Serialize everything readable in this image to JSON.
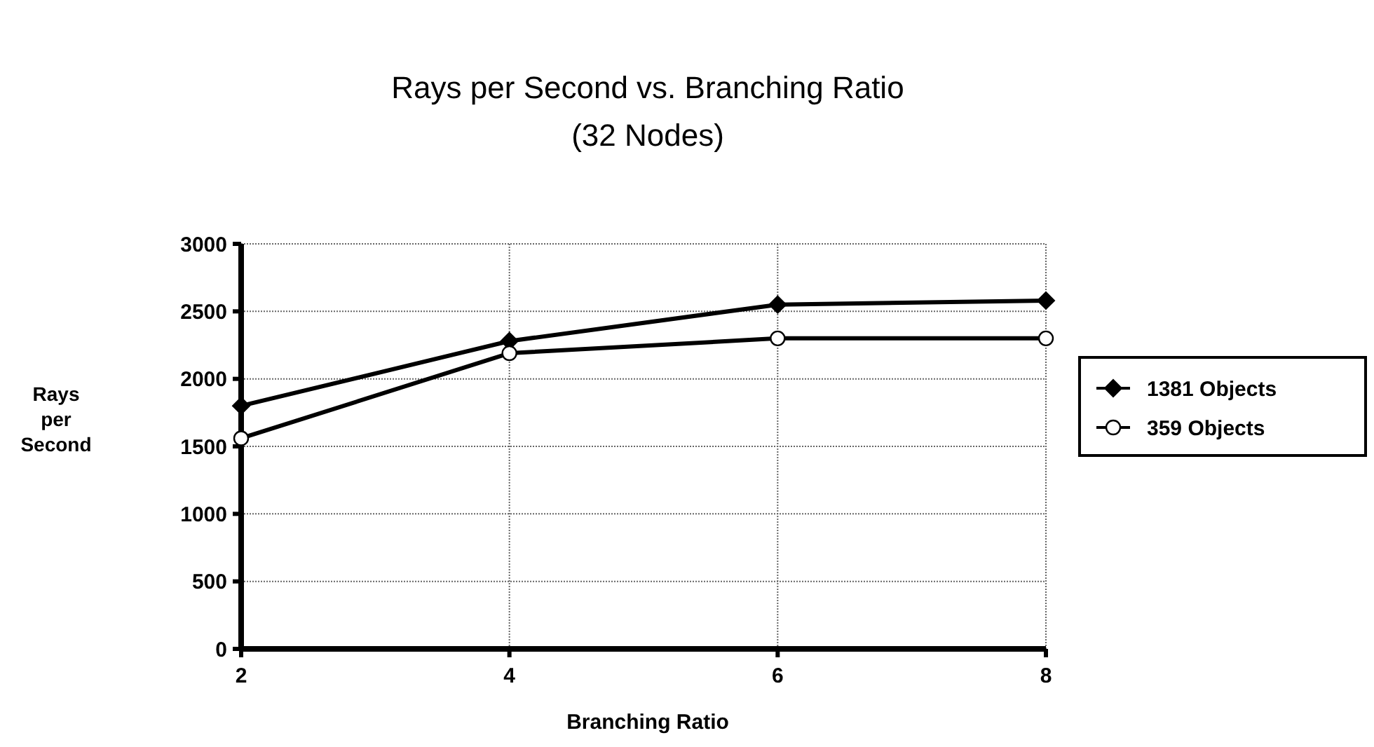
{
  "chart_data": {
    "type": "line",
    "title": "Rays per Second vs. Branching Ratio",
    "subtitle": "(32 Nodes)",
    "xlabel": "Branching Ratio",
    "ylabel": "Rays per Second",
    "x": [
      2,
      4,
      6,
      8
    ],
    "xlim": [
      2,
      8
    ],
    "xticks": [
      2,
      4,
      6,
      8
    ],
    "ylim": [
      0,
      3000
    ],
    "yticks": [
      0,
      500,
      1000,
      1500,
      2000,
      2500,
      3000
    ],
    "grid": true,
    "legend": "right",
    "line_style": "solid",
    "series": [
      {
        "name": "1381 Objects",
        "color": "#000000",
        "marker": "diamond",
        "values": [
          1800,
          2280,
          2550,
          2580
        ]
      },
      {
        "name": "359 Objects",
        "color": "#000000",
        "marker": "circle",
        "values": [
          1560,
          2190,
          2300,
          2300
        ]
      }
    ]
  }
}
